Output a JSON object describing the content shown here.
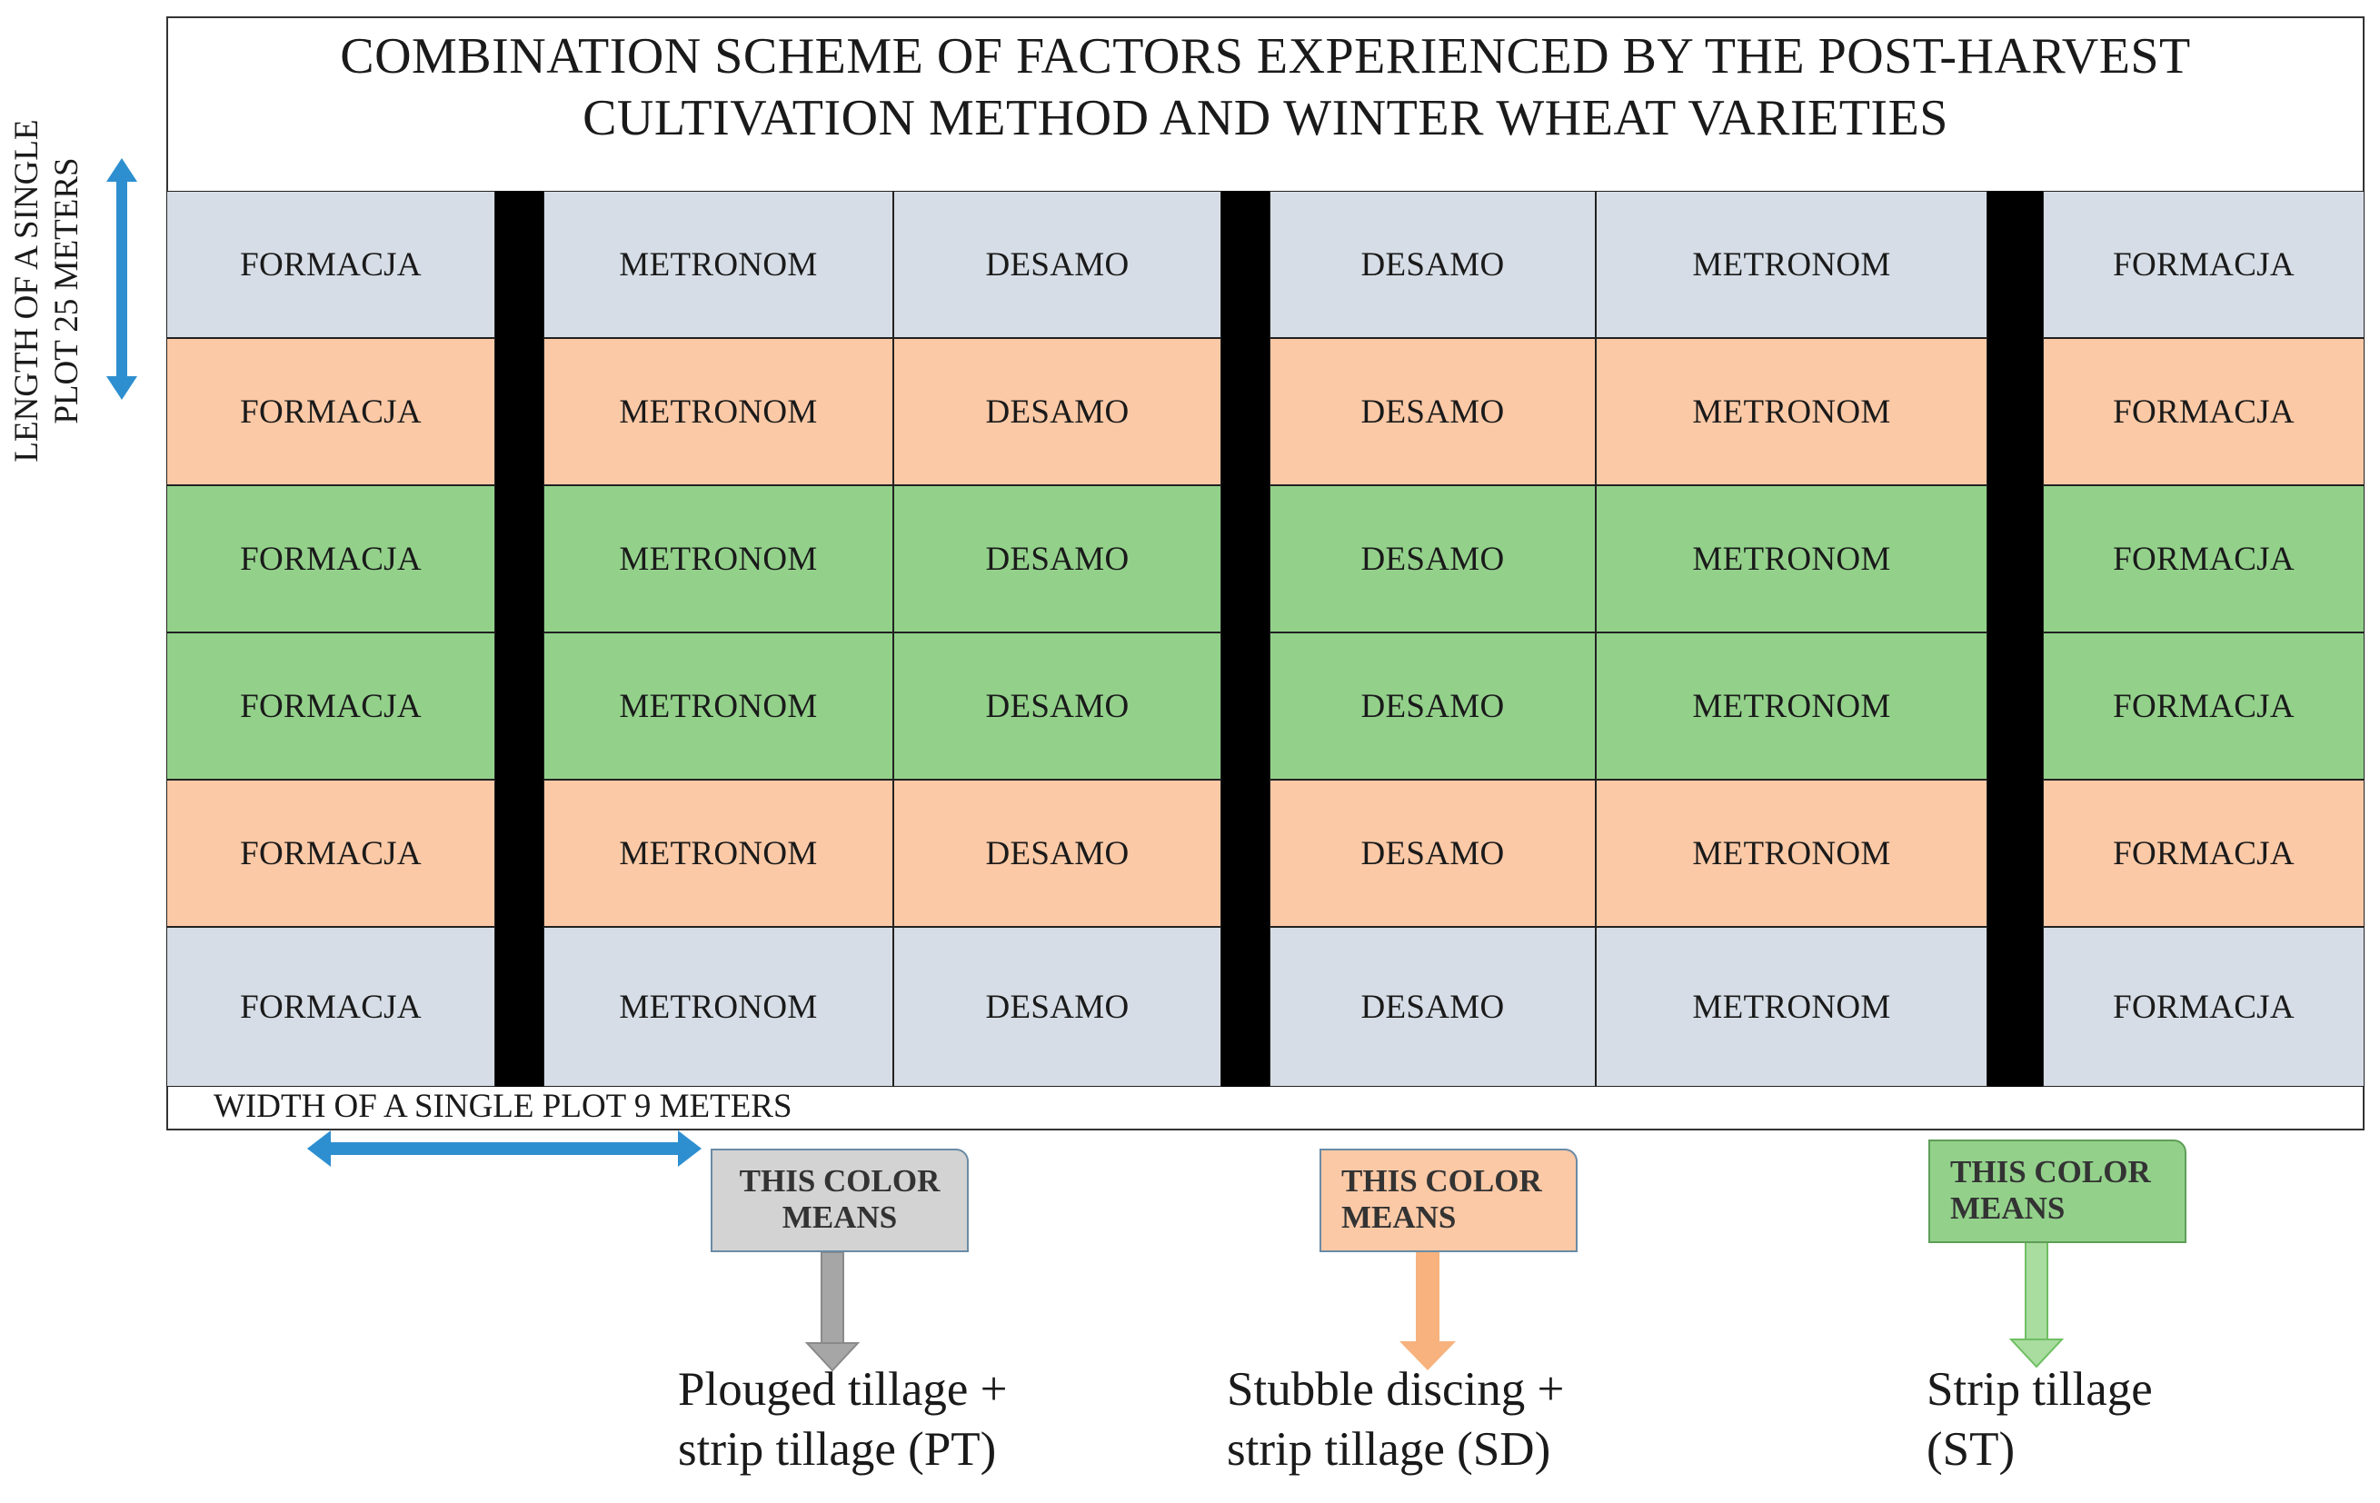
{
  "title": {
    "line1": "COMBINATION SCHEME OF FACTORS EXPERIENCED BY THE POST-HARVEST",
    "line2": "CULTIVATION METHOD AND WINTER WHEAT VARIETIES"
  },
  "length_label": {
    "line1": "LENGTH OF A SINGLE",
    "line2": "PLOT 25 METERS"
  },
  "width_label": "WIDTH OF A SINGLE PLOT 9 METERS",
  "columns": [
    "FORMACJA",
    "METRONOM",
    "DESAMO",
    "DESAMO",
    "METRONOM",
    "FORMACJA"
  ],
  "rows": [
    {
      "treatment": "PT",
      "color": "#d6dde6",
      "cells": [
        "FORMACJA",
        "METRONOM",
        "DESAMO",
        "DESAMO",
        "METRONOM",
        "FORMACJA"
      ]
    },
    {
      "treatment": "SD",
      "color": "#fcc9a6",
      "cells": [
        "FORMACJA",
        "METRONOM",
        "DESAMO",
        "DESAMO",
        "METRONOM",
        "FORMACJA"
      ]
    },
    {
      "treatment": "ST",
      "color": "#93d18b",
      "cells": [
        "FORMACJA",
        "METRONOM",
        "DESAMO",
        "DESAMO",
        "METRONOM",
        "FORMACJA"
      ]
    },
    {
      "treatment": "ST",
      "color": "#93d18b",
      "cells": [
        "FORMACJA",
        "METRONOM",
        "DESAMO",
        "DESAMO",
        "METRONOM",
        "FORMACJA"
      ]
    },
    {
      "treatment": "SD",
      "color": "#fcc9a6",
      "cells": [
        "FORMACJA",
        "METRONOM",
        "DESAMO",
        "DESAMO",
        "METRONOM",
        "FORMACJA"
      ]
    },
    {
      "treatment": "PT",
      "color": "#d6dde6",
      "cells": [
        "FORMACJA",
        "METRONOM",
        "DESAMO",
        "DESAMO",
        "METRONOM",
        "FORMACJA"
      ]
    }
  ],
  "legend": [
    {
      "box_label_1": "THIS COLOR",
      "box_label_2": "MEANS",
      "color": "#d3d3d3",
      "arrow_color": "#a6a6a6",
      "line1": "Plouged tillage +",
      "line2": "strip tillage (PT)"
    },
    {
      "box_label_1": "THIS COLOR",
      "box_label_2": "MEANS",
      "color": "#fcc9a6",
      "arrow_color": "#f7b27d",
      "line1": "Stubble discing +",
      "line2": "strip tillage (SD)"
    },
    {
      "box_label_1": "THIS COLOR",
      "box_label_2": "MEANS",
      "color": "#93d18b",
      "arrow_color": "#93d18b",
      "line1": "Strip tillage",
      "line2": "(ST)"
    }
  ],
  "colors": {
    "conventional": "#d6dde6",
    "stubble": "#fcc9a6",
    "strip": "#93d18b",
    "arrow_blue": "#2e8fd0",
    "gutter": "#000000"
  }
}
